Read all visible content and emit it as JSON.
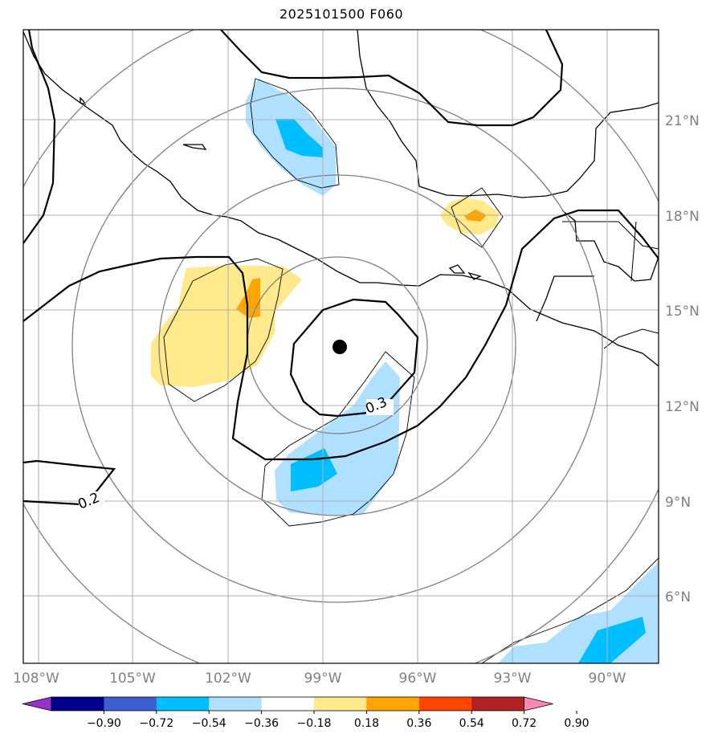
{
  "title": "2025101500 F060",
  "lat_labels": [
    "21°N",
    "18°N",
    "15°N",
    "12°N",
    "9°N",
    "6°N"
  ],
  "lon_labels": [
    "108°W",
    "105°W",
    "102°W",
    "99°W",
    "96°W",
    "93°W",
    "90°W"
  ],
  "contour_labels": [
    "0.3",
    "0.2"
  ],
  "storm_center": {
    "lon": -98.5,
    "lat": 13.8
  },
  "colorbar": {
    "ticks": [
      "−0.90",
      "−0.72",
      "−0.54",
      "−0.36",
      "−0.18",
      "0.18",
      "0.36",
      "0.54",
      "0.72",
      "0.90"
    ],
    "colors": [
      "#9932cc",
      "#00008b",
      "#3b5fcf",
      "#00bfff",
      "#b0e0ff",
      "#ffffff",
      "#ffe98a",
      "#ffa500",
      "#ff4500",
      "#b22222",
      "#ff85b3"
    ]
  },
  "colors": {
    "light_blue": "#b0e0ff",
    "cyan": "#00bfff",
    "light_yellow": "#ffe98a",
    "orange": "#ffa500",
    "grid": "#b0b0b0",
    "range_rings": "#808080"
  }
}
